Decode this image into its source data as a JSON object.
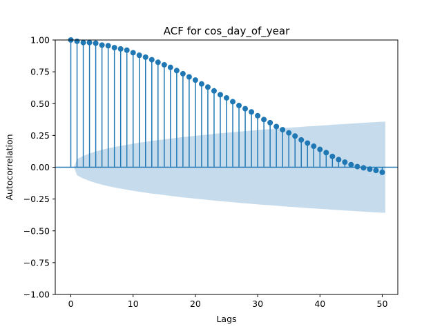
{
  "chart_data": {
    "type": "stem",
    "title": "ACF for cos_day_of_year",
    "xlabel": "Lags",
    "ylabel": "Autocorrelation",
    "xlim": [
      -2.5,
      52.5
    ],
    "ylim": [
      -1.0,
      1.0
    ],
    "xticks": [
      0,
      10,
      20,
      30,
      40,
      50
    ],
    "xtick_labels": [
      "0",
      "10",
      "20",
      "30",
      "40",
      "50"
    ],
    "yticks": [
      1.0,
      0.75,
      0.5,
      0.25,
      0.0,
      -0.25,
      -0.5,
      -0.75,
      -1.0
    ],
    "ytick_labels": [
      "1.00",
      "0.75",
      "0.50",
      "0.25",
      "0.00",
      "−0.25",
      "−0.50",
      "−0.75",
      "−1.00"
    ],
    "grid": false,
    "lags": [
      0,
      1,
      2,
      3,
      4,
      5,
      6,
      7,
      8,
      9,
      10,
      11,
      12,
      13,
      14,
      15,
      16,
      17,
      18,
      19,
      20,
      21,
      22,
      23,
      24,
      25,
      26,
      27,
      28,
      29,
      30,
      31,
      32,
      33,
      34,
      35,
      36,
      37,
      38,
      39,
      40,
      41,
      42,
      43,
      44,
      45,
      46,
      47,
      48,
      49,
      50
    ],
    "acf": [
      1.0,
      0.99,
      0.98,
      0.98,
      0.975,
      0.96,
      0.955,
      0.94,
      0.93,
      0.92,
      0.9,
      0.88,
      0.865,
      0.845,
      0.825,
      0.805,
      0.785,
      0.76,
      0.735,
      0.71,
      0.685,
      0.655,
      0.63,
      0.6,
      0.57,
      0.545,
      0.515,
      0.485,
      0.46,
      0.435,
      0.405,
      0.375,
      0.35,
      0.32,
      0.295,
      0.27,
      0.245,
      0.215,
      0.19,
      0.165,
      0.14,
      0.115,
      0.085,
      0.06,
      0.04,
      0.02,
      0.005,
      -0.005,
      -0.015,
      -0.025,
      -0.04
    ],
    "confint_upper": [
      0.0,
      0.064,
      0.089,
      0.108,
      0.124,
      0.137,
      0.149,
      0.159,
      0.168,
      0.177,
      0.185,
      0.193,
      0.2,
      0.207,
      0.213,
      0.219,
      0.225,
      0.231,
      0.237,
      0.242,
      0.247,
      0.252,
      0.257,
      0.262,
      0.267,
      0.271,
      0.275,
      0.28,
      0.284,
      0.288,
      0.292,
      0.296,
      0.299,
      0.303,
      0.307,
      0.31,
      0.314,
      0.317,
      0.321,
      0.324,
      0.327,
      0.33,
      0.334,
      0.337,
      0.34,
      0.343,
      0.346,
      0.349,
      0.352,
      0.355,
      0.358
    ],
    "confint_fill_color": "#c6dcec",
    "stem_color": "#1f77b4",
    "marker_color": "#1f77b4"
  }
}
